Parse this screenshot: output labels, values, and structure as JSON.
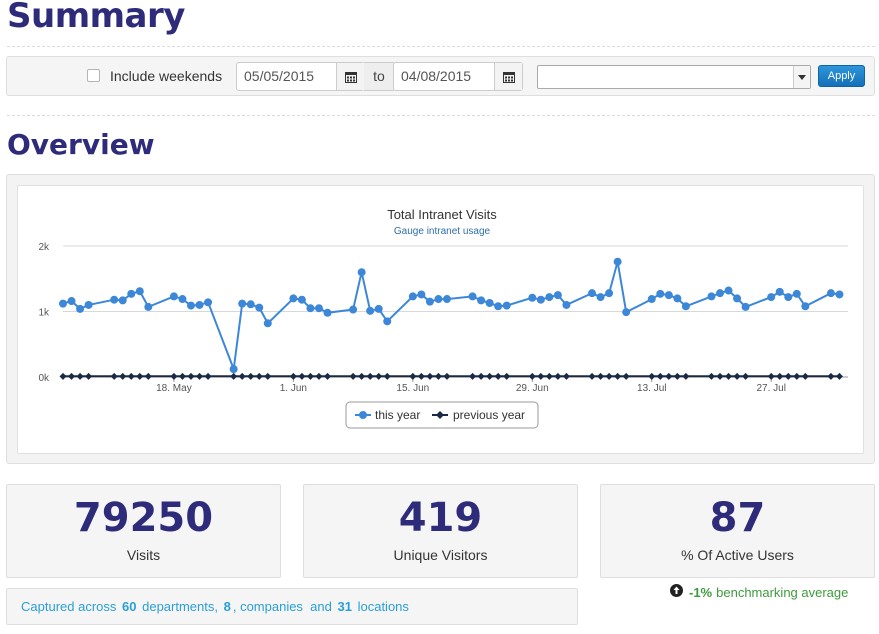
{
  "summary": {
    "title": "Summary",
    "include_weekends_label": "Include weekends",
    "include_weekends_checked": false,
    "date_from": "05/05/2015",
    "to_label": "to",
    "date_to": "04/08/2015",
    "dropdown_value": "",
    "apply_label": "Apply"
  },
  "overview": {
    "title": "Overview"
  },
  "chart_data": {
    "type": "line",
    "title": "Total Intranet Visits",
    "subtitle": "Gauge intranet usage",
    "ylim": [
      0,
      2000
    ],
    "y_ticks": [
      "0k",
      "1k",
      "2k"
    ],
    "x_tick_labels": [
      "18. May",
      "1. Jun",
      "15. Jun",
      "29. Jun",
      "13. Jul",
      "27. Jul"
    ],
    "x_tick_dates": [
      "2015-05-18",
      "2015-06-01",
      "2015-06-15",
      "2015-06-29",
      "2015-07-13",
      "2015-07-27"
    ],
    "legend": "bottom-center",
    "grid": true,
    "series": [
      {
        "name": "this year",
        "color": "#3d87d8",
        "marker": "circle",
        "points": [
          [
            "2015-05-05",
            1120
          ],
          [
            "2015-05-06",
            1160
          ],
          [
            "2015-05-07",
            1040
          ],
          [
            "2015-05-08",
            1100
          ],
          [
            "2015-05-11",
            1180
          ],
          [
            "2015-05-12",
            1170
          ],
          [
            "2015-05-13",
            1270
          ],
          [
            "2015-05-14",
            1310
          ],
          [
            "2015-05-15",
            1070
          ],
          [
            "2015-05-18",
            1230
          ],
          [
            "2015-05-19",
            1190
          ],
          [
            "2015-05-20",
            1090
          ],
          [
            "2015-05-21",
            1100
          ],
          [
            "2015-05-22",
            1140
          ],
          [
            "2015-05-25",
            120
          ],
          [
            "2015-05-26",
            1120
          ],
          [
            "2015-05-27",
            1110
          ],
          [
            "2015-05-28",
            1060
          ],
          [
            "2015-05-29",
            820
          ],
          [
            "2015-06-01",
            1200
          ],
          [
            "2015-06-02",
            1180
          ],
          [
            "2015-06-03",
            1050
          ],
          [
            "2015-06-04",
            1050
          ],
          [
            "2015-06-05",
            980
          ],
          [
            "2015-06-08",
            1030
          ],
          [
            "2015-06-09",
            1600
          ],
          [
            "2015-06-10",
            1010
          ],
          [
            "2015-06-11",
            1040
          ],
          [
            "2015-06-12",
            850
          ],
          [
            "2015-06-15",
            1230
          ],
          [
            "2015-06-16",
            1260
          ],
          [
            "2015-06-17",
            1150
          ],
          [
            "2015-06-18",
            1190
          ],
          [
            "2015-06-19",
            1190
          ],
          [
            "2015-06-22",
            1230
          ],
          [
            "2015-06-23",
            1170
          ],
          [
            "2015-06-24",
            1130
          ],
          [
            "2015-06-25",
            1080
          ],
          [
            "2015-06-26",
            1090
          ],
          [
            "2015-06-29",
            1210
          ],
          [
            "2015-06-30",
            1180
          ],
          [
            "2015-07-01",
            1220
          ],
          [
            "2015-07-02",
            1250
          ],
          [
            "2015-07-03",
            1100
          ],
          [
            "2015-07-06",
            1280
          ],
          [
            "2015-07-07",
            1220
          ],
          [
            "2015-07-08",
            1280
          ],
          [
            "2015-07-09",
            1760
          ],
          [
            "2015-07-10",
            990
          ],
          [
            "2015-07-13",
            1190
          ],
          [
            "2015-07-14",
            1270
          ],
          [
            "2015-07-15",
            1250
          ],
          [
            "2015-07-16",
            1200
          ],
          [
            "2015-07-17",
            1080
          ],
          [
            "2015-07-20",
            1230
          ],
          [
            "2015-07-21",
            1280
          ],
          [
            "2015-07-22",
            1320
          ],
          [
            "2015-07-23",
            1200
          ],
          [
            "2015-07-24",
            1070
          ],
          [
            "2015-07-27",
            1220
          ],
          [
            "2015-07-28",
            1300
          ],
          [
            "2015-07-29",
            1220
          ],
          [
            "2015-07-30",
            1270
          ],
          [
            "2015-07-31",
            1080
          ],
          [
            "2015-08-03",
            1280
          ],
          [
            "2015-08-04",
            1260
          ]
        ]
      },
      {
        "name": "previous year",
        "color": "#1b2a44",
        "marker": "diamond",
        "points": [
          [
            "2015-05-05",
            10
          ],
          [
            "2015-05-06",
            10
          ],
          [
            "2015-05-07",
            10
          ],
          [
            "2015-05-08",
            10
          ],
          [
            "2015-05-11",
            10
          ],
          [
            "2015-05-12",
            10
          ],
          [
            "2015-05-13",
            10
          ],
          [
            "2015-05-14",
            10
          ],
          [
            "2015-05-15",
            10
          ],
          [
            "2015-05-18",
            10
          ],
          [
            "2015-05-19",
            10
          ],
          [
            "2015-05-20",
            10
          ],
          [
            "2015-05-21",
            10
          ],
          [
            "2015-05-22",
            10
          ],
          [
            "2015-05-25",
            10
          ],
          [
            "2015-05-26",
            10
          ],
          [
            "2015-05-27",
            10
          ],
          [
            "2015-05-28",
            10
          ],
          [
            "2015-05-29",
            10
          ],
          [
            "2015-06-01",
            10
          ],
          [
            "2015-06-02",
            10
          ],
          [
            "2015-06-03",
            10
          ],
          [
            "2015-06-04",
            10
          ],
          [
            "2015-06-05",
            10
          ],
          [
            "2015-06-08",
            10
          ],
          [
            "2015-06-09",
            10
          ],
          [
            "2015-06-10",
            10
          ],
          [
            "2015-06-11",
            10
          ],
          [
            "2015-06-12",
            10
          ],
          [
            "2015-06-15",
            10
          ],
          [
            "2015-06-16",
            10
          ],
          [
            "2015-06-17",
            10
          ],
          [
            "2015-06-18",
            10
          ],
          [
            "2015-06-19",
            10
          ],
          [
            "2015-06-22",
            10
          ],
          [
            "2015-06-23",
            10
          ],
          [
            "2015-06-24",
            10
          ],
          [
            "2015-06-25",
            10
          ],
          [
            "2015-06-26",
            10
          ],
          [
            "2015-06-29",
            10
          ],
          [
            "2015-06-30",
            10
          ],
          [
            "2015-07-01",
            10
          ],
          [
            "2015-07-02",
            10
          ],
          [
            "2015-07-03",
            10
          ],
          [
            "2015-07-06",
            10
          ],
          [
            "2015-07-07",
            10
          ],
          [
            "2015-07-08",
            10
          ],
          [
            "2015-07-09",
            10
          ],
          [
            "2015-07-10",
            10
          ],
          [
            "2015-07-13",
            10
          ],
          [
            "2015-07-14",
            10
          ],
          [
            "2015-07-15",
            10
          ],
          [
            "2015-07-16",
            10
          ],
          [
            "2015-07-17",
            10
          ],
          [
            "2015-07-20",
            10
          ],
          [
            "2015-07-21",
            10
          ],
          [
            "2015-07-22",
            10
          ],
          [
            "2015-07-23",
            10
          ],
          [
            "2015-07-24",
            10
          ],
          [
            "2015-07-27",
            10
          ],
          [
            "2015-07-28",
            10
          ],
          [
            "2015-07-29",
            10
          ],
          [
            "2015-07-30",
            10
          ],
          [
            "2015-07-31",
            10
          ],
          [
            "2015-08-03",
            10
          ],
          [
            "2015-08-04",
            10
          ]
        ]
      }
    ]
  },
  "stats": {
    "visits_value": "79250",
    "visits_label": "Visits",
    "unique_value": "419",
    "unique_label": "Unique Visitors",
    "active_value": "87",
    "active_label": "% Of Active Users"
  },
  "captured": {
    "prefix": "Captured across",
    "departments_count": "60",
    "departments_label": "departments,",
    "companies_count": "8",
    "companies_label": ", companies",
    "and_label": "and",
    "locations_count": "31",
    "locations_label": "locations"
  },
  "benchmark": {
    "icon": "arrow-up-circle-icon",
    "percent": "-1%",
    "label": "benchmarking average"
  }
}
